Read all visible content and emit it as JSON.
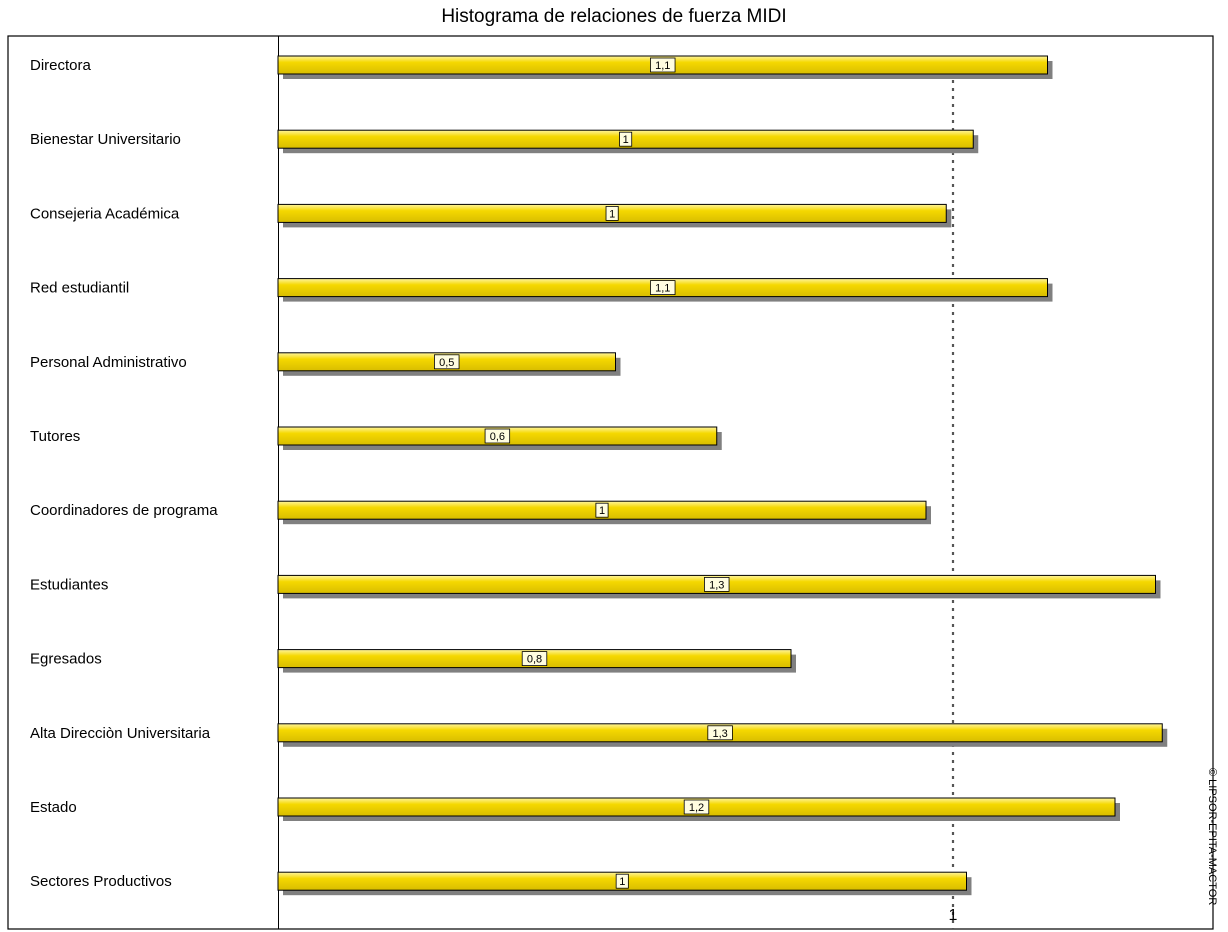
{
  "chart_data": {
    "type": "bar",
    "orientation": "horizontal",
    "title": "Histograma de relaciones de fuerza MIDI",
    "categories": [
      "Directora",
      "Bienestar Universitario",
      "Consejeria  Académica",
      "Red estudiantil",
      "Personal Administrativo",
      "Tutores",
      "Coordinadores de programa",
      "Estudiantes",
      "Egresados",
      "Alta Direcciòn Universitaria",
      "Estado",
      "Sectores Productivos"
    ],
    "values": [
      1.14,
      1.03,
      0.99,
      1.14,
      0.5,
      0.65,
      0.96,
      1.3,
      0.76,
      1.31,
      1.24,
      1.02
    ],
    "data_labels": [
      "1,1",
      "1",
      "1",
      "1,1",
      "0,5",
      "0,6",
      "1",
      "1,3",
      "0,8",
      "1,3",
      "1,2",
      "1"
    ],
    "xlim": [
      0,
      1.4
    ],
    "reference_line": {
      "value": 1,
      "label": "1"
    },
    "colors": {
      "bar": "#f5d800",
      "bar_highlight": "#fff5a0",
      "shadow": "#808080",
      "label_bg": "#fffde0"
    }
  },
  "footer": {
    "copyright": "© LIPSOR-EPITA-MACTOR"
  }
}
